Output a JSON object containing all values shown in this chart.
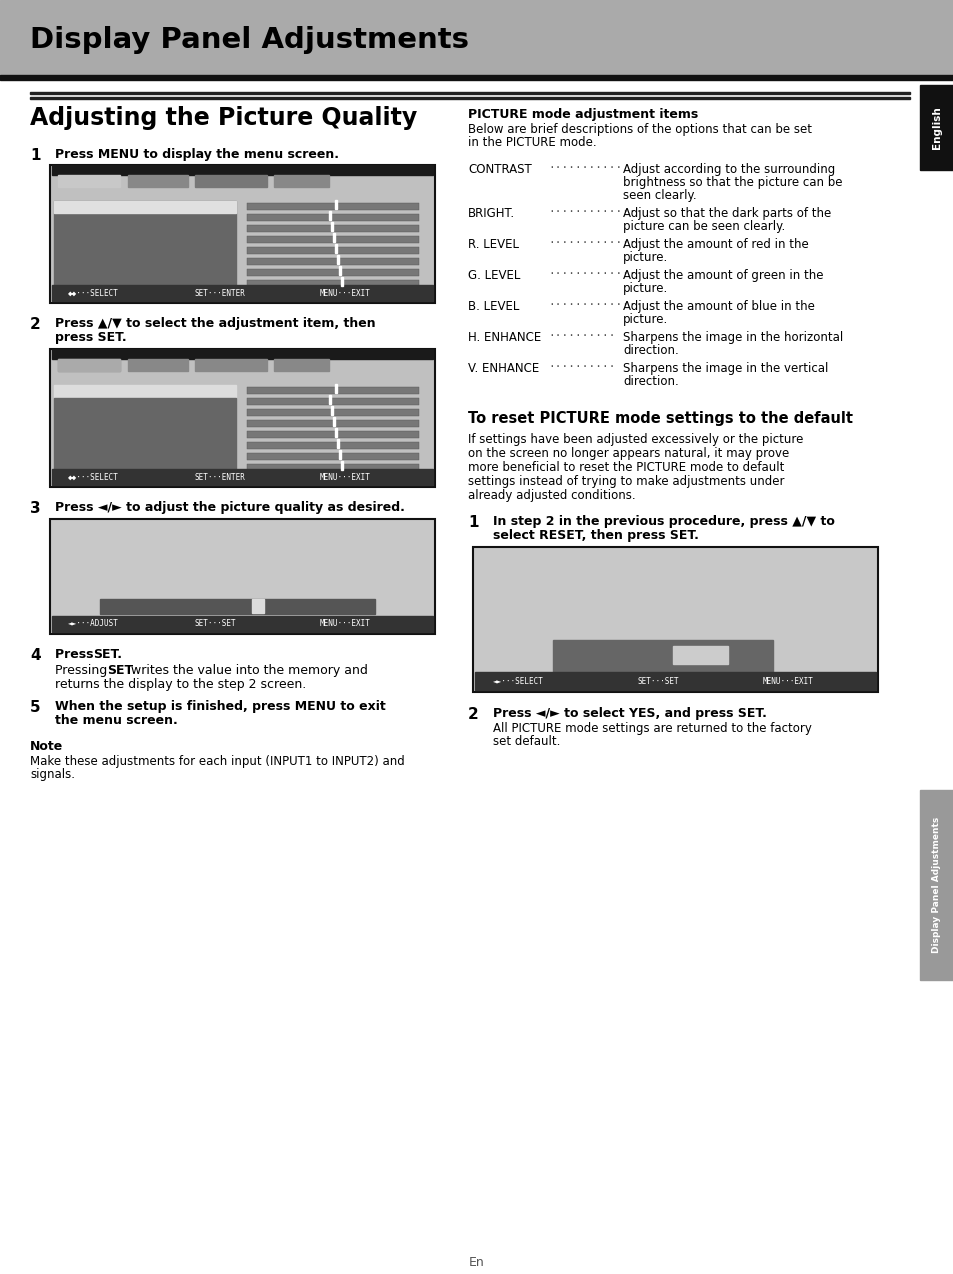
{
  "page_bg": "#ffffff",
  "header_bg": "#aaaaaa",
  "header_text": "Display Panel Adjustments",
  "section_title": "Adjusting the Picture Quality",
  "footer_text": "En",
  "step1_text": "Press MENU to display the menu screen.",
  "step2_text1": "Press ▲/▼ to select the adjustment item, then",
  "step2_text2": "press SET.",
  "step3_text": "Press ◄/► to adjust the picture quality as desired.",
  "step4_title": "Press SET.",
  "step4_text1": "Pressing SET writes the value into the memory and",
  "step4_text2": "returns the display to the step 2 screen.",
  "step5_text1": "When the setup is finished, press MENU to exit",
  "step5_text2": "the menu screen.",
  "note_title": "Note",
  "note_text1": "Make these adjustments for each input (INPUT1 to INPUT2) and",
  "note_text2": "signals.",
  "pic_title": "PICTURE mode adjustment items",
  "pic_desc1": "Below are brief descriptions of the options that can be set",
  "pic_desc2": "in the PICTURE mode.",
  "items": [
    [
      "CONTRAST",
      "···········",
      [
        "Adjust according to the surrounding",
        "brightness so that the picture can be",
        "seen clearly."
      ]
    ],
    [
      "BRIGHT.",
      "··············",
      [
        "Adjust so that the dark parts of the",
        "picture can be seen clearly."
      ]
    ],
    [
      "R. LEVEL",
      "··············",
      [
        "Adjust the amount of red in the",
        "picture."
      ]
    ],
    [
      "G. LEVEL",
      "··············",
      [
        "Adjust the amount of green in the",
        "picture."
      ]
    ],
    [
      "B. LEVEL",
      "··············",
      [
        "Adjust the amount of blue in the",
        "picture."
      ]
    ],
    [
      "H. ENHANCE",
      "··········",
      [
        "Sharpens the image in the horizontal",
        "direction."
      ]
    ],
    [
      "V. ENHANCE",
      "··········",
      [
        "Sharpens the image in the vertical",
        "direction."
      ]
    ]
  ],
  "reset_title": "To reset PICTURE mode settings to the default",
  "reset_desc": [
    "If settings have been adjusted excessively or the picture",
    "on the screen no longer appears natural, it may prove",
    "more beneficial to reset the PICTURE mode to default",
    "settings instead of trying to make adjustments under",
    "already adjusted conditions."
  ],
  "rs1_text1": "In step 2 in the previous procedure, press ▲/▼ to",
  "rs1_text2": "select RESET, then press SET.",
  "rs2_title": "Press ◄/► to select YES, and press SET.",
  "rs2_text1": "All PICTURE mode settings are returned to the factory",
  "rs2_text2": "set default."
}
